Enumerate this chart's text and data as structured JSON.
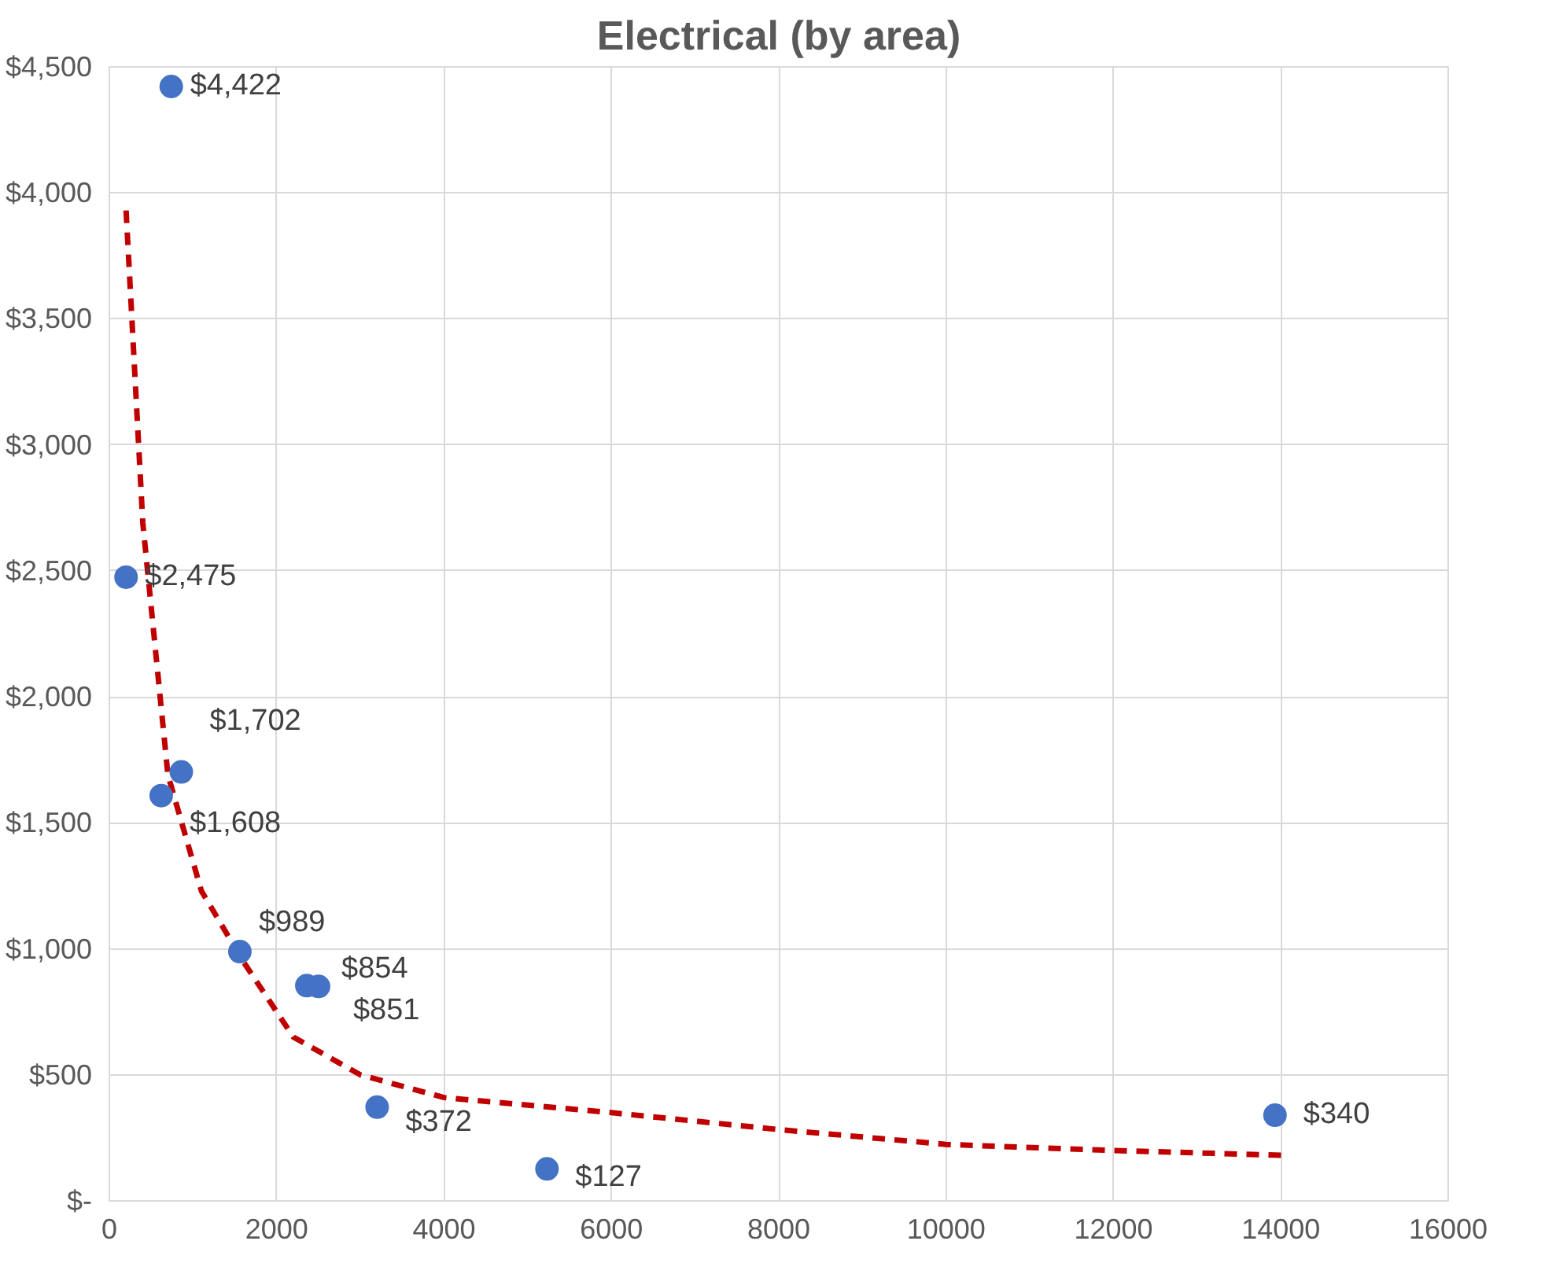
{
  "chart_data": {
    "type": "scatter",
    "title": "Electrical (by area)",
    "grid": true,
    "marker": "circle",
    "xlim": [
      0,
      16000
    ],
    "ylim": [
      0,
      4500
    ],
    "xticks": [
      0,
      2000,
      4000,
      6000,
      8000,
      10000,
      12000,
      14000,
      16000
    ],
    "yticks": [
      {
        "value": 0,
        "label": "$-"
      },
      {
        "value": 500,
        "label": "$500"
      },
      {
        "value": 1000,
        "label": "$1,000"
      },
      {
        "value": 1500,
        "label": "$1,500"
      },
      {
        "value": 2000,
        "label": "$2,000"
      },
      {
        "value": 2500,
        "label": "$2,500"
      },
      {
        "value": 3000,
        "label": "$3,000"
      },
      {
        "value": 3500,
        "label": "$3,500"
      },
      {
        "value": 4000,
        "label": "$4,000"
      },
      {
        "value": 4500,
        "label": "$4,500"
      }
    ],
    "series": [
      {
        "color": "#4472c4",
        "x": [
          740,
          200,
          860,
          620,
          1560,
          2360,
          2500,
          3200,
          5230,
          13930
        ],
        "values": [
          4422,
          2475,
          1702,
          1608,
          989,
          854,
          851,
          372,
          127,
          340
        ],
        "value_labels": [
          "$4,422",
          "$2,475",
          "$1,702",
          "$1,608",
          "$989",
          "$854",
          "$851",
          "$372",
          "$127",
          "$340"
        ]
      },
      {
        "type": "line",
        "marker": "none",
        "color": "#c00000",
        "line_style": "dashed",
        "x": [
          200,
          400,
          700,
          1100,
          1600,
          2200,
          3000,
          4000,
          6000,
          8000,
          10000,
          12000,
          14100
        ],
        "values": [
          3930,
          2690,
          1690,
          1230,
          950,
          650,
          500,
          410,
          350,
          283,
          224,
          200,
          180
        ]
      }
    ]
  }
}
